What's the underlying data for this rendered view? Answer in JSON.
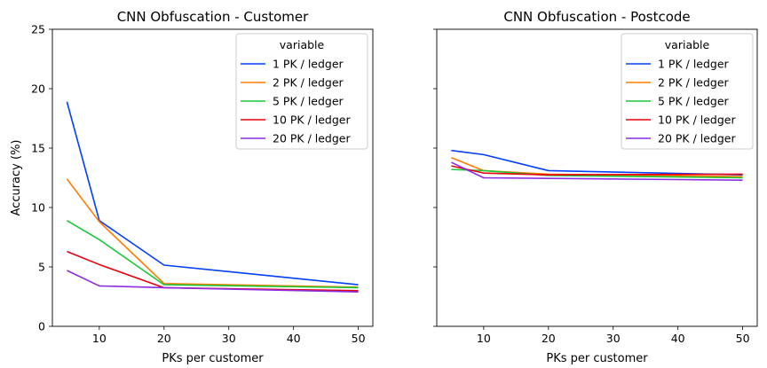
{
  "chart_data": [
    {
      "type": "line",
      "title": "CNN Obfuscation - Customer",
      "xlabel": "PKs per customer",
      "ylabel": "Accuracy (%)",
      "xlim": [
        2.75,
        52.25
      ],
      "ylim": [
        0,
        25
      ],
      "xticks": [
        10,
        20,
        30,
        40,
        50
      ],
      "yticks": [
        0,
        5,
        10,
        15,
        20,
        25
      ],
      "grid": false,
      "legend_title": "variable",
      "legend_position": "top-right",
      "x": [
        5,
        10,
        20,
        50
      ],
      "series": [
        {
          "name": "1 PK / ledger",
          "color": "#023eff",
          "values": [
            18.9,
            8.9,
            5.15,
            3.5
          ]
        },
        {
          "name": "2 PK / ledger",
          "color": "#ff7c00",
          "values": [
            12.4,
            8.8,
            3.6,
            3.3
          ]
        },
        {
          "name": "5 PK / ledger",
          "color": "#1ac938",
          "values": [
            8.9,
            7.3,
            3.5,
            3.25
          ]
        },
        {
          "name": "10 PK / ledger",
          "color": "#e8000b",
          "values": [
            6.3,
            5.2,
            3.25,
            3.0
          ]
        },
        {
          "name": "20 PK / ledger",
          "color": "#8b2be2",
          "values": [
            4.7,
            3.4,
            3.25,
            2.9
          ]
        }
      ]
    },
    {
      "type": "line",
      "title": "CNN Obfuscation - Postcode",
      "xlabel": "PKs per customer",
      "ylabel": "",
      "xlim": [
        2.75,
        52.25
      ],
      "ylim": [
        0,
        25
      ],
      "xticks": [
        10,
        20,
        30,
        40,
        50
      ],
      "yticks": [
        0,
        5,
        10,
        15,
        20,
        25
      ],
      "show_ytick_labels": false,
      "grid": false,
      "legend_title": "variable",
      "legend_position": "top-right",
      "x": [
        5,
        10,
        20,
        50
      ],
      "series": [
        {
          "name": "1 PK / ledger",
          "color": "#023eff",
          "values": [
            14.8,
            14.45,
            13.1,
            12.75
          ]
        },
        {
          "name": "2 PK / ledger",
          "color": "#ff7c00",
          "values": [
            14.2,
            13.1,
            12.8,
            12.6
          ]
        },
        {
          "name": "5 PK / ledger",
          "color": "#1ac938",
          "values": [
            13.2,
            13.1,
            12.7,
            12.5
          ]
        },
        {
          "name": "10 PK / ledger",
          "color": "#e8000b",
          "values": [
            13.5,
            12.9,
            12.75,
            12.8
          ]
        },
        {
          "name": "20 PK / ledger",
          "color": "#8b2be2",
          "values": [
            13.8,
            12.5,
            12.45,
            12.3
          ]
        }
      ]
    }
  ]
}
